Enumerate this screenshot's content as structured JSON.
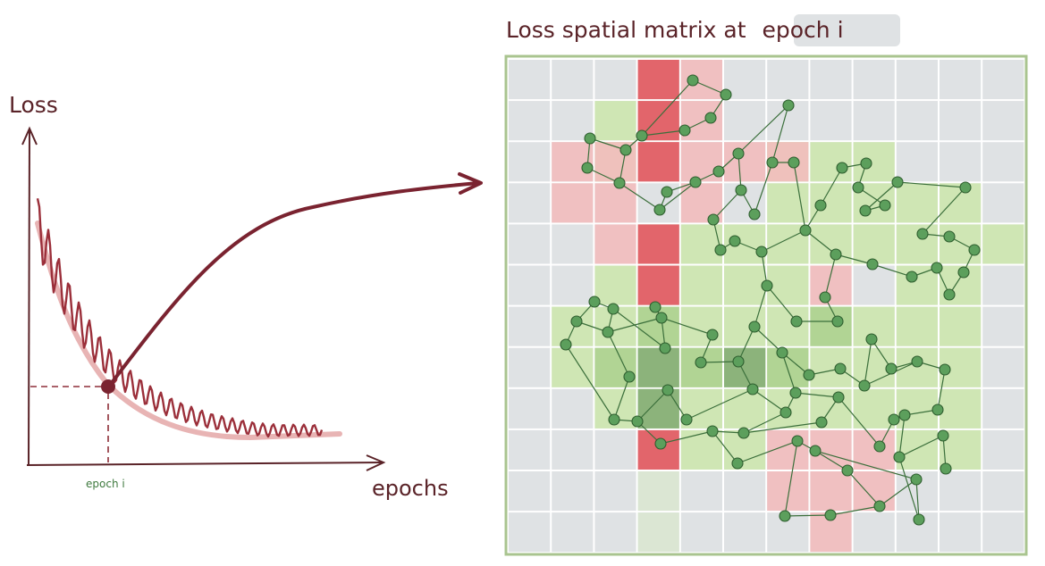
{
  "left_plot": {
    "y_label": "Loss",
    "x_label": "epochs",
    "marker_label": "epoch i"
  },
  "right_panel": {
    "title_prefix": "Loss spatial matrix at",
    "title_highlight": "epoch i"
  },
  "colors": {
    "ink": "#5a2328",
    "loss_curve": "#9b2f3a",
    "smooth_curve": "#e8b4b4",
    "arrow": "#7a2330",
    "grid_base": "#dfe2e4",
    "grid_border": "#a9c48f",
    "light_red": "#f2bcbc",
    "strong_red": "#e2656b",
    "light_green": "#cfe6b4",
    "mid_green": "#a9cf8c",
    "dark_green": "#86ad77",
    "faint_green": "#dbe6d3",
    "node": "#5c9f5c",
    "edge": "#3b6f3b",
    "title_highlight_bg": "#dfe2e4"
  }
}
